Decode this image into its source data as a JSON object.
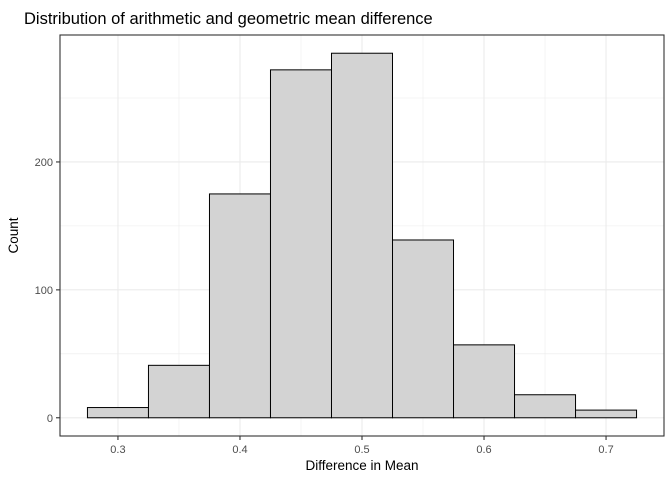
{
  "chart_data": {
    "type": "bar",
    "title": "Distribution of arithmetic and geometric mean difference",
    "xlabel": "Difference in Mean",
    "ylabel": "Count",
    "xlim": [
      0.2525,
      0.7475
    ],
    "ylim": [
      -14.25,
      299.25
    ],
    "x_ticks": [
      0.3,
      0.4,
      0.5,
      0.6,
      0.7
    ],
    "y_ticks": [
      0,
      100,
      200
    ],
    "bins": [
      {
        "x0": 0.275,
        "x1": 0.325,
        "value": 8
      },
      {
        "x0": 0.325,
        "x1": 0.375,
        "value": 41
      },
      {
        "x0": 0.375,
        "x1": 0.425,
        "value": 175
      },
      {
        "x0": 0.425,
        "x1": 0.475,
        "value": 272
      },
      {
        "x0": 0.475,
        "x1": 0.525,
        "value": 285
      },
      {
        "x0": 0.525,
        "x1": 0.575,
        "value": 139
      },
      {
        "x0": 0.575,
        "x1": 0.625,
        "value": 57
      },
      {
        "x0": 0.625,
        "x1": 0.675,
        "value": 18
      },
      {
        "x0": 0.675,
        "x1": 0.725,
        "value": 6
      }
    ],
    "grid": true,
    "colors": {
      "bar_fill": "#d3d3d3",
      "bar_stroke": "#000000",
      "grid": "#ebebeb",
      "panel_border": "#333333",
      "tick_text": "#4d4d4d"
    }
  }
}
